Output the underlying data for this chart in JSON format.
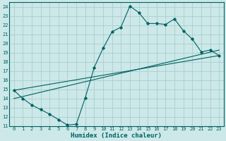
{
  "xlabel": "Humidex (Indice chaleur)",
  "ylabel": "",
  "xlim": [
    -0.5,
    23.5
  ],
  "ylim": [
    11,
    24.5
  ],
  "xticks": [
    0,
    1,
    2,
    3,
    4,
    5,
    6,
    7,
    8,
    9,
    10,
    11,
    12,
    13,
    14,
    15,
    16,
    17,
    18,
    19,
    20,
    21,
    22,
    23
  ],
  "yticks": [
    11,
    12,
    13,
    14,
    15,
    16,
    17,
    18,
    19,
    20,
    21,
    22,
    23,
    24
  ],
  "background_color": "#cce8e8",
  "grid_color": "#aacece",
  "line_color": "#006060",
  "line1_x": [
    0,
    1,
    2,
    3,
    4,
    5,
    6,
    7,
    8,
    9,
    10,
    11,
    12,
    13,
    14,
    15,
    16,
    17,
    18,
    19,
    20,
    21,
    22,
    23
  ],
  "line1_y": [
    14.9,
    14.0,
    13.3,
    12.8,
    12.3,
    11.7,
    11.1,
    11.2,
    14.1,
    17.4,
    19.5,
    21.3,
    21.8,
    24.1,
    23.4,
    22.2,
    22.2,
    22.1,
    22.7,
    21.4,
    20.5,
    19.1,
    19.3,
    18.7
  ],
  "line2_x": [
    0,
    23
  ],
  "line2_y": [
    14.9,
    18.7
  ],
  "line3_x": [
    0,
    23
  ],
  "line3_y": [
    14.0,
    19.3
  ],
  "figsize": [
    3.2,
    2.0
  ],
  "dpi": 100,
  "tick_fontsize": 5.0,
  "xlabel_fontsize": 6.5
}
